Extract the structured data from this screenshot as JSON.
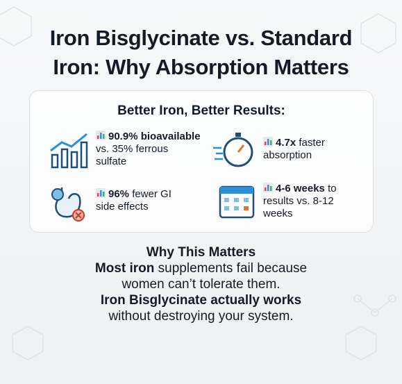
{
  "header": {
    "title": "Iron Bisglycinate vs. Standard Iron: Why Absorption Matters"
  },
  "card": {
    "heading": "Better Iron, Better Results:",
    "stats": [
      {
        "bold": "90.9% bioavailable",
        "text": "vs. 35% ferrous sulfate"
      },
      {
        "bold": "4.7x",
        "text": "faster absorption"
      },
      {
        "bold": "96%",
        "text": "fewer GI side effects"
      },
      {
        "bold": "4-6 weeks",
        "text": "to results vs. 8-12 weeks"
      }
    ]
  },
  "why": {
    "heading": "Why This Matters",
    "paragraphs": [
      {
        "bold": "Most iron",
        "text": "supplements fail because women can’t tolerate them."
      },
      {
        "bold": "Iron Bisglycinate actually works",
        "text": "without destroying your system."
      }
    ]
  }
}
